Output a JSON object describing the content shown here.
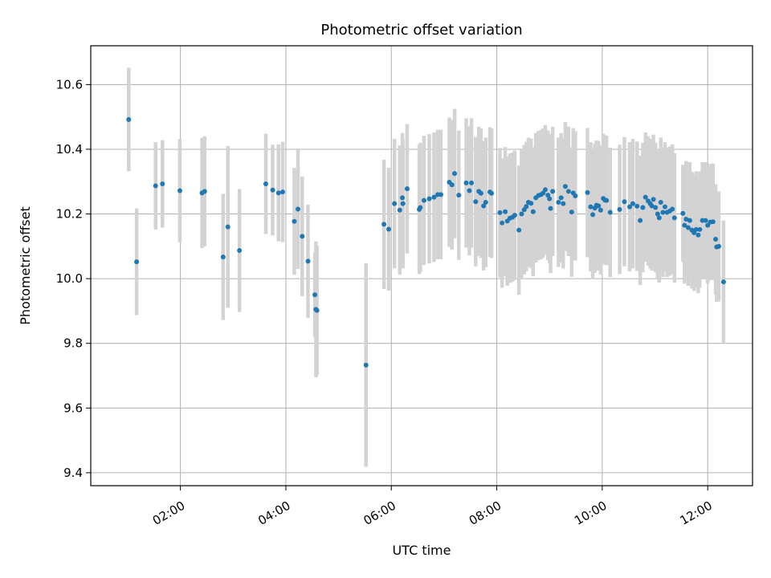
{
  "chart_data": {
    "type": "scatter",
    "title": "Photometric offset variation",
    "xlabel": "UTC time",
    "ylabel": "Photometric offset",
    "x_unit": "hours UTC",
    "xlim": [
      0.3,
      12.85
    ],
    "ylim": [
      9.36,
      10.72
    ],
    "x_ticks": [
      2,
      4,
      6,
      8,
      10,
      12
    ],
    "x_tick_labels": [
      "02:00",
      "04:00",
      "06:00",
      "08:00",
      "10:00",
      "12:00"
    ],
    "y_ticks": [
      9.4,
      9.6,
      9.8,
      10.0,
      10.2,
      10.4,
      10.6
    ],
    "y_tick_labels": [
      "9.4",
      "9.6",
      "9.8",
      "10.0",
      "10.2",
      "10.4",
      "10.6"
    ],
    "grid": true,
    "colors": {
      "point": "#1f77b4",
      "errorbar": "#d3d3d3",
      "grid": "#b0b0b0"
    },
    "points": [
      [
        1.02,
        10.492,
        0.16
      ],
      [
        1.17,
        10.052,
        0.165
      ],
      [
        1.53,
        10.287,
        0.135
      ],
      [
        1.66,
        10.293,
        0.135
      ],
      [
        1.99,
        10.272,
        0.16
      ],
      [
        2.41,
        10.265,
        0.17
      ],
      [
        2.46,
        10.27,
        0.17
      ],
      [
        2.81,
        10.067,
        0.195
      ],
      [
        2.9,
        10.16,
        0.25
      ],
      [
        3.12,
        10.087,
        0.19
      ],
      [
        3.62,
        10.293,
        0.155
      ],
      [
        3.75,
        10.274,
        0.14
      ],
      [
        3.86,
        10.265,
        0.15
      ],
      [
        3.94,
        10.268,
        0.155
      ],
      [
        4.16,
        10.177,
        0.165
      ],
      [
        4.23,
        10.215,
        0.185
      ],
      [
        4.31,
        10.131,
        0.185
      ],
      [
        4.42,
        10.054,
        0.175
      ],
      [
        4.55,
        9.95,
        0.13
      ],
      [
        4.57,
        9.905,
        0.21
      ],
      [
        4.59,
        9.902,
        0.2
      ],
      [
        5.52,
        9.733,
        0.315
      ],
      [
        5.86,
        10.168,
        0.2
      ],
      [
        5.95,
        10.153,
        0.19
      ],
      [
        6.06,
        10.232,
        0.2
      ],
      [
        6.16,
        10.212,
        0.2
      ],
      [
        6.21,
        10.25,
        0.2
      ],
      [
        6.22,
        10.232,
        0.2
      ],
      [
        6.3,
        10.278,
        0.2
      ],
      [
        6.53,
        10.214,
        0.2
      ],
      [
        6.55,
        10.22,
        0.2
      ],
      [
        6.62,
        10.242,
        0.2
      ],
      [
        6.72,
        10.247,
        0.2
      ],
      [
        6.81,
        10.252,
        0.2
      ],
      [
        6.88,
        10.26,
        0.2
      ],
      [
        6.94,
        10.26,
        0.2
      ],
      [
        7.1,
        10.298,
        0.2
      ],
      [
        7.15,
        10.29,
        0.2
      ],
      [
        7.2,
        10.325,
        0.2
      ],
      [
        7.28,
        10.258,
        0.2
      ],
      [
        7.42,
        10.296,
        0.2
      ],
      [
        7.48,
        10.272,
        0.2
      ],
      [
        7.52,
        10.296,
        0.2
      ],
      [
        7.6,
        10.238,
        0.2
      ],
      [
        7.66,
        10.27,
        0.2
      ],
      [
        7.7,
        10.264,
        0.2
      ],
      [
        7.75,
        10.225,
        0.2
      ],
      [
        7.79,
        10.236,
        0.2
      ],
      [
        7.87,
        10.268,
        0.2
      ],
      [
        7.9,
        10.264,
        0.2
      ],
      [
        8.06,
        10.204,
        0.2
      ],
      [
        8.1,
        10.172,
        0.2
      ],
      [
        8.16,
        10.207,
        0.2
      ],
      [
        8.2,
        10.178,
        0.2
      ],
      [
        8.25,
        10.187,
        0.2
      ],
      [
        8.3,
        10.19,
        0.2
      ],
      [
        8.34,
        10.196,
        0.2
      ],
      [
        8.42,
        10.15,
        0.2
      ],
      [
        8.47,
        10.2,
        0.2
      ],
      [
        8.52,
        10.213,
        0.2
      ],
      [
        8.56,
        10.223,
        0.2
      ],
      [
        8.6,
        10.236,
        0.2
      ],
      [
        8.65,
        10.233,
        0.2
      ],
      [
        8.69,
        10.207,
        0.2
      ],
      [
        8.74,
        10.25,
        0.2
      ],
      [
        8.79,
        10.257,
        0.2
      ],
      [
        8.84,
        10.26,
        0.2
      ],
      [
        8.88,
        10.265,
        0.2
      ],
      [
        8.92,
        10.275,
        0.2
      ],
      [
        8.97,
        10.258,
        0.2
      ],
      [
        9.0,
        10.247,
        0.2
      ],
      [
        9.02,
        10.217,
        0.2
      ],
      [
        9.06,
        10.27,
        0.2
      ],
      [
        9.17,
        10.236,
        0.2
      ],
      [
        9.22,
        10.25,
        0.2
      ],
      [
        9.26,
        10.232,
        0.2
      ],
      [
        9.3,
        10.285,
        0.2
      ],
      [
        9.36,
        10.27,
        0.2
      ],
      [
        9.42,
        10.206,
        0.2
      ],
      [
        9.45,
        10.265,
        0.2
      ],
      [
        9.49,
        10.256,
        0.2
      ],
      [
        9.72,
        10.266,
        0.2
      ],
      [
        9.78,
        10.222,
        0.2
      ],
      [
        9.82,
        10.198,
        0.2
      ],
      [
        9.86,
        10.218,
        0.2
      ],
      [
        9.89,
        10.227,
        0.2
      ],
      [
        9.93,
        10.225,
        0.2
      ],
      [
        9.97,
        10.212,
        0.2
      ],
      [
        10.02,
        10.248,
        0.2
      ],
      [
        10.05,
        10.243,
        0.2
      ],
      [
        10.08,
        10.242,
        0.2
      ],
      [
        10.15,
        10.205,
        0.2
      ],
      [
        10.33,
        10.214,
        0.2
      ],
      [
        10.42,
        10.238,
        0.2
      ],
      [
        10.52,
        10.222,
        0.2
      ],
      [
        10.58,
        10.232,
        0.2
      ],
      [
        10.66,
        10.224,
        0.2
      ],
      [
        10.72,
        10.18,
        0.2
      ],
      [
        10.77,
        10.22,
        0.2
      ],
      [
        10.82,
        10.252,
        0.2
      ],
      [
        10.87,
        10.24,
        0.2
      ],
      [
        10.91,
        10.232,
        0.2
      ],
      [
        10.94,
        10.225,
        0.2
      ],
      [
        10.97,
        10.245,
        0.2
      ],
      [
        11.01,
        10.22,
        0.2
      ],
      [
        11.05,
        10.2,
        0.2
      ],
      [
        11.08,
        10.188,
        0.2
      ],
      [
        11.11,
        10.236,
        0.2
      ],
      [
        11.15,
        10.205,
        0.2
      ],
      [
        11.19,
        10.222,
        0.2
      ],
      [
        11.23,
        10.205,
        0.2
      ],
      [
        11.28,
        10.209,
        0.2
      ],
      [
        11.33,
        10.215,
        0.2
      ],
      [
        11.37,
        10.188,
        0.2
      ],
      [
        11.53,
        10.202,
        0.15
      ],
      [
        11.56,
        10.165,
        0.18
      ],
      [
        11.59,
        10.184,
        0.18
      ],
      [
        11.63,
        10.158,
        0.18
      ],
      [
        11.66,
        10.18,
        0.18
      ],
      [
        11.7,
        10.15,
        0.18
      ],
      [
        11.74,
        10.142,
        0.18
      ],
      [
        11.78,
        10.152,
        0.18
      ],
      [
        11.82,
        10.135,
        0.18
      ],
      [
        11.85,
        10.152,
        0.18
      ],
      [
        11.9,
        10.18,
        0.18
      ],
      [
        11.96,
        10.18,
        0.18
      ],
      [
        12.0,
        10.165,
        0.18
      ],
      [
        12.05,
        10.175,
        0.18
      ],
      [
        12.1,
        10.176,
        0.18
      ],
      [
        12.15,
        10.122,
        0.17
      ],
      [
        12.17,
        10.098,
        0.17
      ],
      [
        12.21,
        10.1,
        0.17
      ],
      [
        12.3,
        9.99,
        0.19
      ]
    ]
  }
}
